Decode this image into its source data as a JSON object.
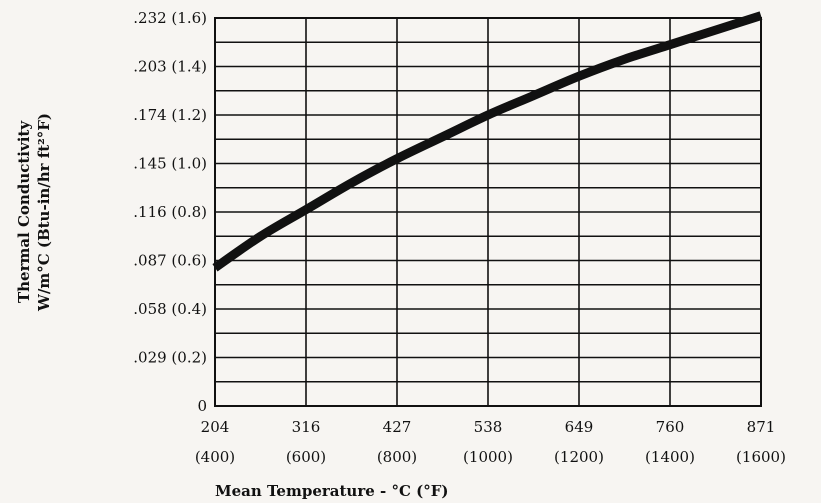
{
  "chart_data": {
    "type": "line",
    "xlabel": "Mean Temperature - °C (°F)",
    "ylabel_line1": "Thermal Conductivity",
    "ylabel_line2": "W/m°C (Btu-in/hr ft²°F)",
    "xlim": [
      400,
      1600
    ],
    "ylim": [
      0,
      1.6
    ],
    "x_ticks": [
      {
        "value": 400,
        "c": "204",
        "f": "(400)"
      },
      {
        "value": 600,
        "c": "316",
        "f": "(600)"
      },
      {
        "value": 800,
        "c": "427",
        "f": "(800)"
      },
      {
        "value": 1000,
        "c": "538",
        "f": "(1000)"
      },
      {
        "value": 1200,
        "c": "649",
        "f": "(1200)"
      },
      {
        "value": 1400,
        "c": "760",
        "f": "(1400)"
      },
      {
        "value": 1600,
        "c": "871",
        "f": "(1600)"
      }
    ],
    "y_ticks": [
      {
        "value": 0,
        "label": "0"
      },
      {
        "value": 0.2,
        "label": ".029 (0.2)"
      },
      {
        "value": 0.4,
        "label": ".058 (0.4)"
      },
      {
        "value": 0.6,
        "label": ".087 (0.6)"
      },
      {
        "value": 0.8,
        "label": ".116 (0.8)"
      },
      {
        "value": 1.0,
        "label": ".145 (1.0)"
      },
      {
        "value": 1.2,
        "label": ".174 (1.2)"
      },
      {
        "value": 1.4,
        "label": ".203 (1.4)"
      },
      {
        "value": 1.6,
        "label": ".232 (1.6)"
      }
    ],
    "minor_y_step": 0.1,
    "grid": true,
    "series": [
      {
        "x": [
          400,
          500,
          600,
          700,
          800,
          900,
          1000,
          1100,
          1200,
          1300,
          1400,
          1500,
          1600
        ],
        "y": [
          0.57,
          0.7,
          0.81,
          0.92,
          1.02,
          1.11,
          1.2,
          1.28,
          1.36,
          1.43,
          1.49,
          1.55,
          1.61
        ],
        "color": "#111111"
      }
    ]
  }
}
